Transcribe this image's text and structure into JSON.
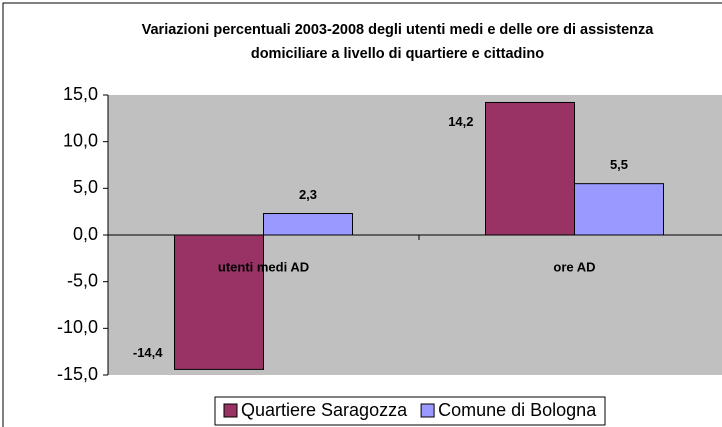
{
  "chart_data": {
    "type": "bar",
    "title": "Variazioni percentuali 2003-2008 degli utenti medi e delle ore di assistenza domiciliare a livello di quartiere e cittadino",
    "categories": [
      "utenti medi AD",
      "ore AD"
    ],
    "series": [
      {
        "name": "Quartiere Saragozza",
        "color": "#993366",
        "values": [
          -14.4,
          14.2
        ],
        "value_labels": [
          "-14,4",
          "14,2"
        ]
      },
      {
        "name": "Comune di Bologna",
        "color": "#9999ff",
        "values": [
          2.3,
          5.5
        ],
        "value_labels": [
          "2,3",
          "5,5"
        ]
      }
    ],
    "ylim": [
      -15,
      15
    ],
    "yticks": [
      {
        "value": -15,
        "label": "-15,0"
      },
      {
        "value": -10,
        "label": "-10,0"
      },
      {
        "value": -5,
        "label": "-5,0"
      },
      {
        "value": 0,
        "label": "0,0"
      },
      {
        "value": 5,
        "label": "5,0"
      },
      {
        "value": 10,
        "label": "10,0"
      },
      {
        "value": 15,
        "label": "15,0"
      }
    ],
    "legend": "bottom"
  }
}
